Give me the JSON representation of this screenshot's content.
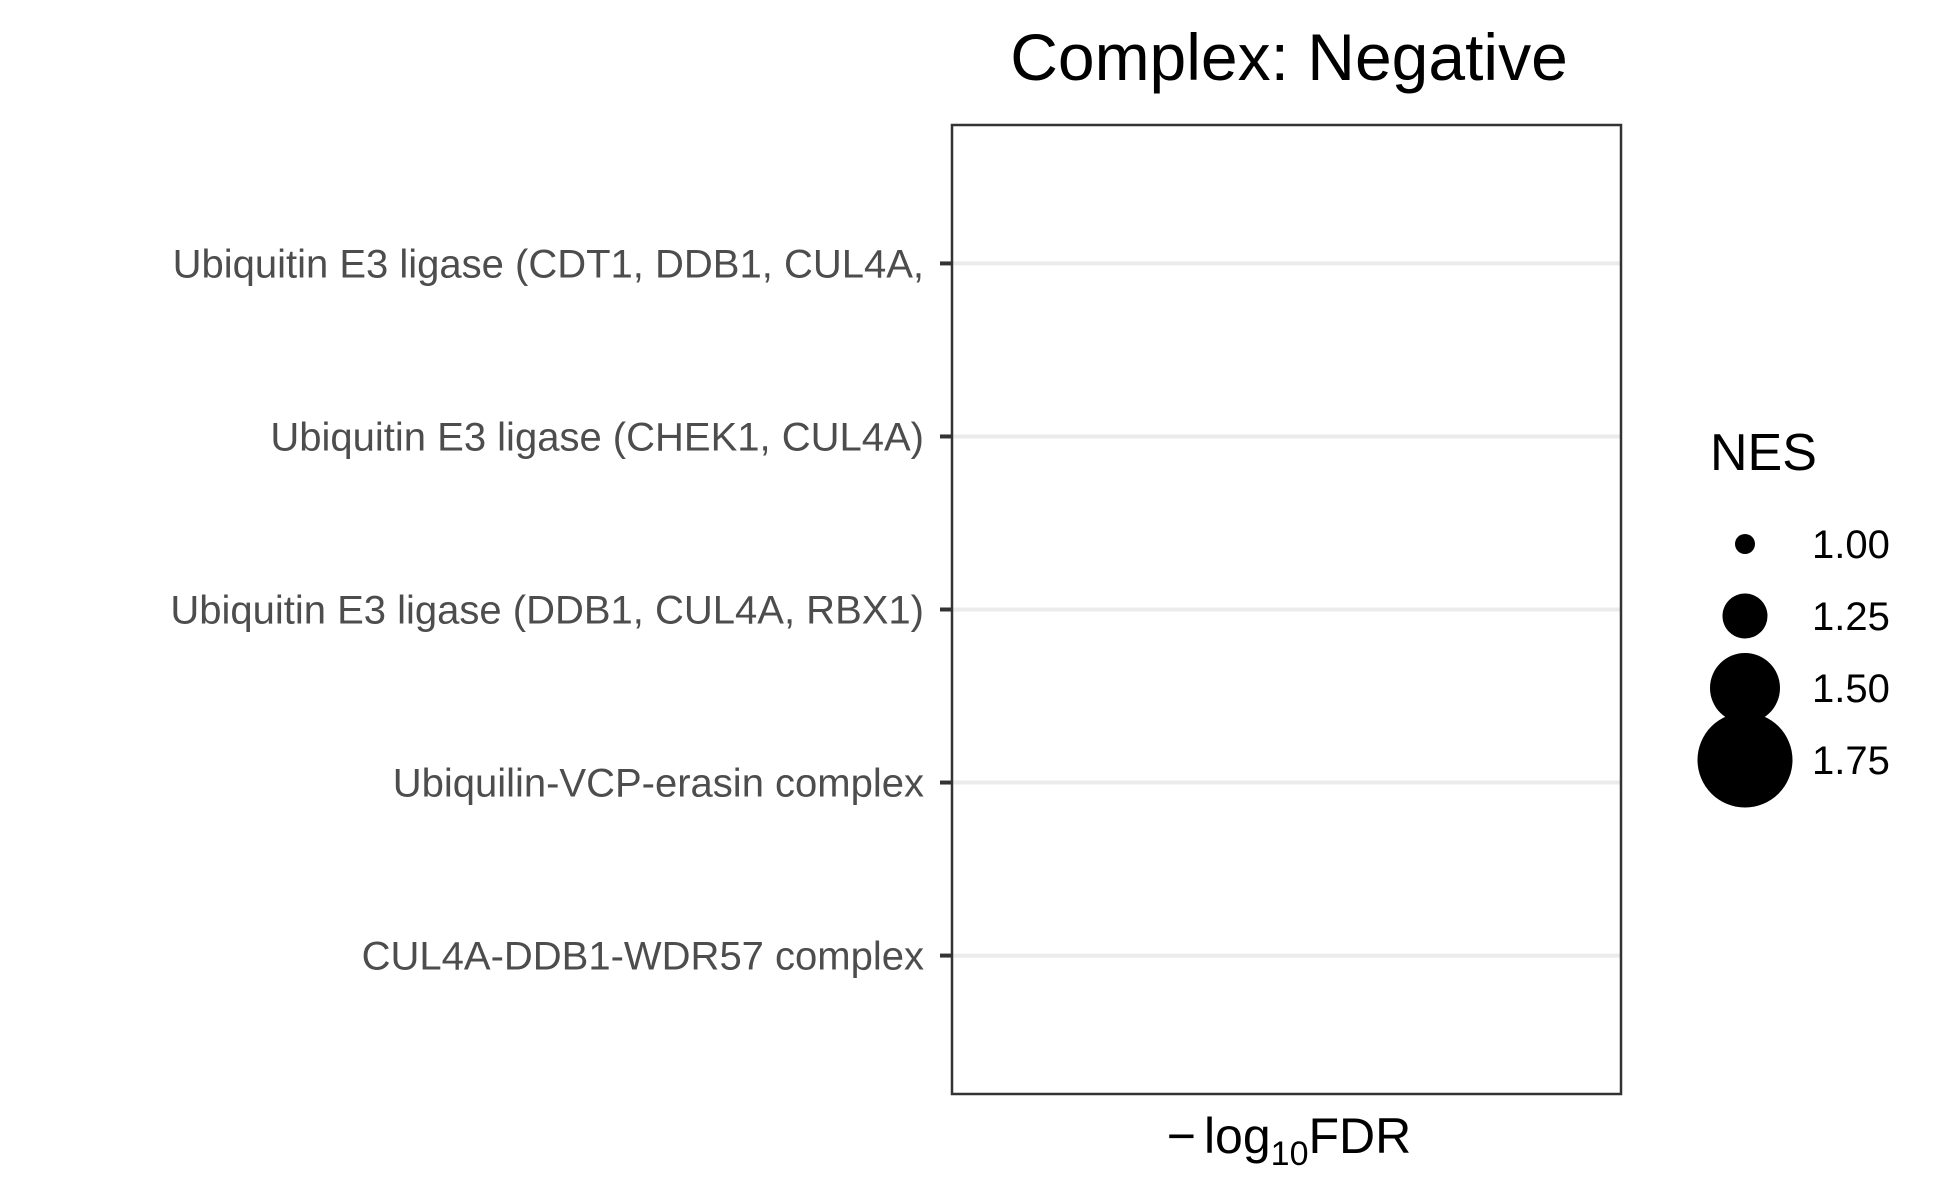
{
  "chart_data": {
    "type": "scatter",
    "title": "Complex: Negative",
    "xlabel": "−log10FDR",
    "xlabel_parts": {
      "prefix": "−",
      "log": "log",
      "base": "10",
      "suffix": "FDR"
    },
    "ylabel": "",
    "categories": [
      "Ubiquitin E3 ligase (CDT1, DDB1, CUL4A,",
      "Ubiquitin E3 ligase (CHEK1, CUL4A)",
      "Ubiquitin E3 ligase (DDB1, CUL4A, RBX1)",
      "Ubiquilin-VCP-erasin complex",
      "CUL4A-DDB1-WDR57 complex"
    ],
    "points": [],
    "grid": {
      "major_y": true,
      "major_x": false,
      "color": "#ebebeb"
    },
    "legend": {
      "title": "NES",
      "position": "right",
      "entries": [
        {
          "label": "1.00",
          "value": 1.0
        },
        {
          "label": "1.25",
          "value": 1.25
        },
        {
          "label": "1.50",
          "value": 1.5
        },
        {
          "label": "1.75",
          "value": 1.75
        }
      ]
    },
    "colors": {
      "point": "#000000",
      "panel_border": "#333333",
      "tick_label": "#4d4d4d"
    }
  }
}
